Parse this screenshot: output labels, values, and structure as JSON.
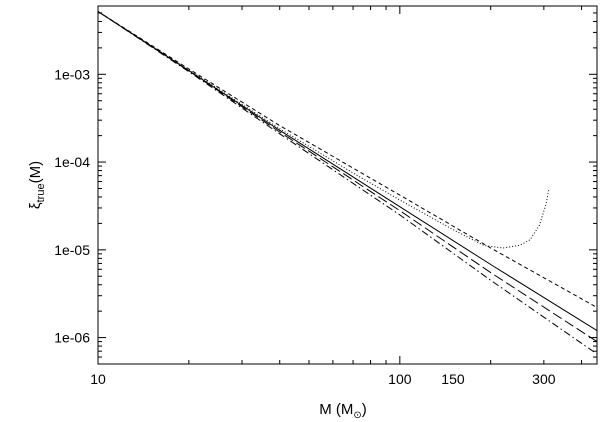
{
  "chart_data": {
    "type": "line",
    "title": "",
    "xlabel": "M (M",
    "xlabel_sub": "⊙",
    "xlabel_close": ")",
    "ylabel": "ξ",
    "ylabel_sub": "true",
    "ylabel_tail": "(M)",
    "xscale": "log",
    "yscale": "log",
    "xlim": [
      10,
      450
    ],
    "ylim": [
      5e-07,
      0.006
    ],
    "grid": false,
    "legend": "none",
    "xticks": [
      {
        "value": 10,
        "label": "10"
      },
      {
        "value": 100,
        "label": "100"
      },
      {
        "value": 150,
        "label": "150"
      },
      {
        "value": 300,
        "label": "300"
      }
    ],
    "yticks": [
      {
        "value": 0.001,
        "label": "1e-03"
      },
      {
        "value": 0.0001,
        "label": "1e-04"
      },
      {
        "value": 1e-05,
        "label": "1e-05"
      },
      {
        "value": 1e-06,
        "label": "1e-06"
      }
    ],
    "series": [
      {
        "style": "solid",
        "points": [
          [
            10,
            0.0052
          ],
          [
            20,
            0.0011
          ],
          [
            40,
            0.00023
          ],
          [
            100,
            3.1e-05
          ],
          [
            200,
            6.8e-06
          ],
          [
            450,
            1.2e-06
          ]
        ]
      },
      {
        "style": "dashed",
        "points": [
          [
            10,
            0.0052
          ],
          [
            20,
            0.00115
          ],
          [
            40,
            0.00026
          ],
          [
            100,
            4.2e-05
          ],
          [
            200,
            1.05e-05
          ],
          [
            450,
            2.2e-06
          ]
        ]
      },
      {
        "style": "dashdot",
        "points": [
          [
            10,
            0.0052
          ],
          [
            20,
            0.00107
          ],
          [
            40,
            0.00021
          ],
          [
            100,
            2.5e-05
          ],
          [
            200,
            4.5e-06
          ],
          [
            450,
            6.5e-07
          ]
        ]
      },
      {
        "style": "longdash",
        "points": [
          [
            10,
            0.0052
          ],
          [
            20,
            0.00109
          ],
          [
            40,
            0.00022
          ],
          [
            100,
            2.8e-05
          ],
          [
            200,
            5.5e-06
          ],
          [
            450,
            9e-07
          ]
        ]
      },
      {
        "style": "dotted",
        "points": [
          [
            10,
            0.0052
          ],
          [
            20,
            0.00112
          ],
          [
            40,
            0.00024
          ],
          [
            70,
            7.5e-05
          ],
          [
            100,
            3.7e-05
          ],
          [
            150,
            1.7e-05
          ],
          [
            190,
            1.12e-05
          ],
          [
            220,
            1.05e-05
          ],
          [
            250,
            1.13e-05
          ],
          [
            270,
            1.3e-05
          ],
          [
            290,
            1.9e-05
          ],
          [
            305,
            3.3e-05
          ],
          [
            312,
            5e-05
          ]
        ]
      }
    ]
  }
}
